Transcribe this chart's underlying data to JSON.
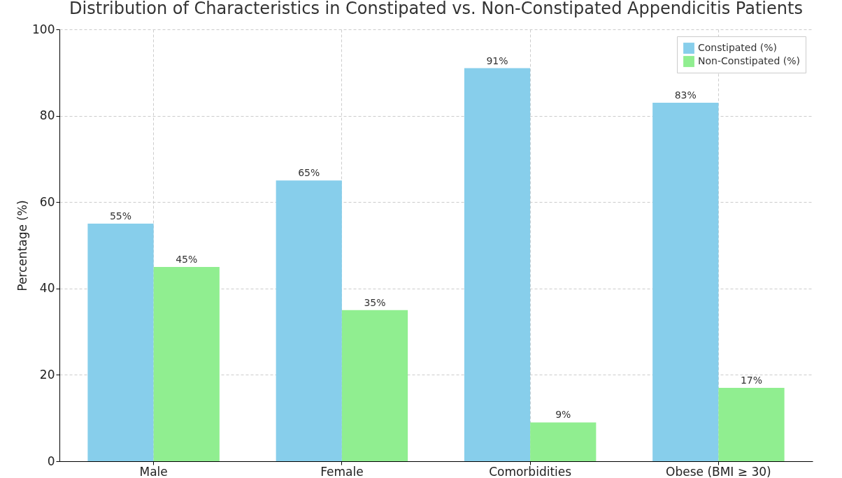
{
  "chart_data": {
    "type": "bar",
    "title": "Distribution of Characteristics in Constipated vs. Non-Constipated Appendicitis Patients",
    "ylabel": "Percentage (%)",
    "categories": [
      "Male",
      "Female",
      "Comorbidities",
      "Obese (BMI ≥ 30)"
    ],
    "series": [
      {
        "name": "Constipated (%)",
        "color": "#87ceeb",
        "values": [
          55,
          65,
          91,
          83
        ],
        "value_labels": [
          "55%",
          "65%",
          "91%",
          "83%"
        ]
      },
      {
        "name": "Non-Constipated (%)",
        "color": "#90ee90",
        "values": [
          45,
          35,
          9,
          17
        ],
        "value_labels": [
          "45%",
          "35%",
          "9%",
          "17%"
        ]
      }
    ],
    "ylim": [
      0,
      100
    ],
    "yticks": [
      0,
      20,
      40,
      60,
      80,
      100
    ],
    "grid": true,
    "legend": "top right"
  }
}
